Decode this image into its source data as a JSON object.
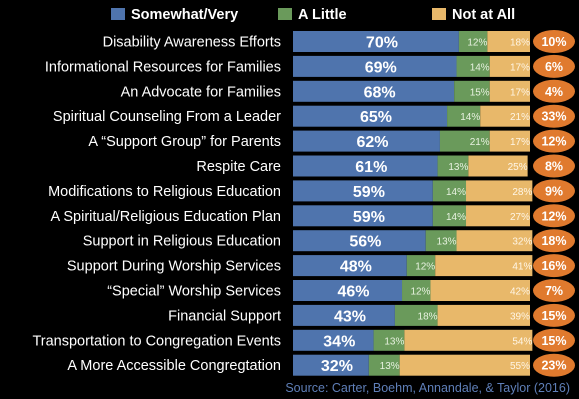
{
  "chart_data": {
    "type": "bar",
    "stacked": true,
    "orientation": "horizontal",
    "categories": [
      "Disability Awareness Efforts",
      "Informational Resources for Families",
      "An Advocate for Families",
      "Spiritual Counseling From a Leader",
      "A “Support Group” for Parents",
      "Respite Care",
      "Modifications to Religious Education",
      "A Spiritual/Religious Education Plan",
      "Support in Religious Education",
      "Support During Worship Services",
      "“Special” Worship Services",
      "Financial Support",
      "Transportation to Congregation Events",
      "A More Accessible Congregtation"
    ],
    "series": [
      {
        "name": "Somewhat/Very",
        "color": "#4f74ad",
        "values": [
          70,
          69,
          68,
          65,
          62,
          61,
          59,
          59,
          56,
          48,
          46,
          43,
          34,
          32
        ],
        "labels": [
          "70%",
          "69%",
          "68%",
          "65%",
          "62%",
          "61%",
          "59%",
          "59%",
          "56%",
          "48%",
          "46%",
          "43%",
          "34%",
          "32%"
        ]
      },
      {
        "name": "A Little",
        "color": "#6a9a5b",
        "values": [
          12,
          14,
          15,
          14,
          21,
          13,
          14,
          14,
          13,
          12,
          12,
          18,
          13,
          13
        ],
        "labels": [
          "12%",
          "14%",
          "15%",
          "14%",
          "21%",
          "13%",
          "14%",
          "14%",
          "13%",
          "12%",
          "12%",
          "18%",
          "13%",
          "13%"
        ]
      },
      {
        "name": "Not at All",
        "color": "#e8b86a",
        "values": [
          18,
          17,
          17,
          21,
          17,
          25,
          28,
          27,
          32,
          41,
          42,
          39,
          54,
          55
        ],
        "labels": [
          "18%",
          "17%",
          "17%",
          "21%",
          "17%",
          "25%",
          "28%",
          "27%",
          "32%",
          "41%",
          "42%",
          "39%",
          "54%",
          "55%"
        ]
      }
    ],
    "extra_values": [
      10,
      6,
      4,
      33,
      12,
      8,
      9,
      12,
      18,
      16,
      7,
      15,
      15,
      23
    ],
    "extra_labels": [
      "10%",
      "6%",
      "4%",
      "33%",
      "12%",
      "8%",
      "9%",
      "12%",
      "18%",
      "16%",
      "7%",
      "15%",
      "15%",
      "23%"
    ],
    "extra_color": "#e07a2e",
    "xlim": [
      0,
      100
    ],
    "legend_position": "top",
    "grid": false,
    "source": "Source: Carter, Boehm, Annandale, & Taylor (2016)"
  }
}
